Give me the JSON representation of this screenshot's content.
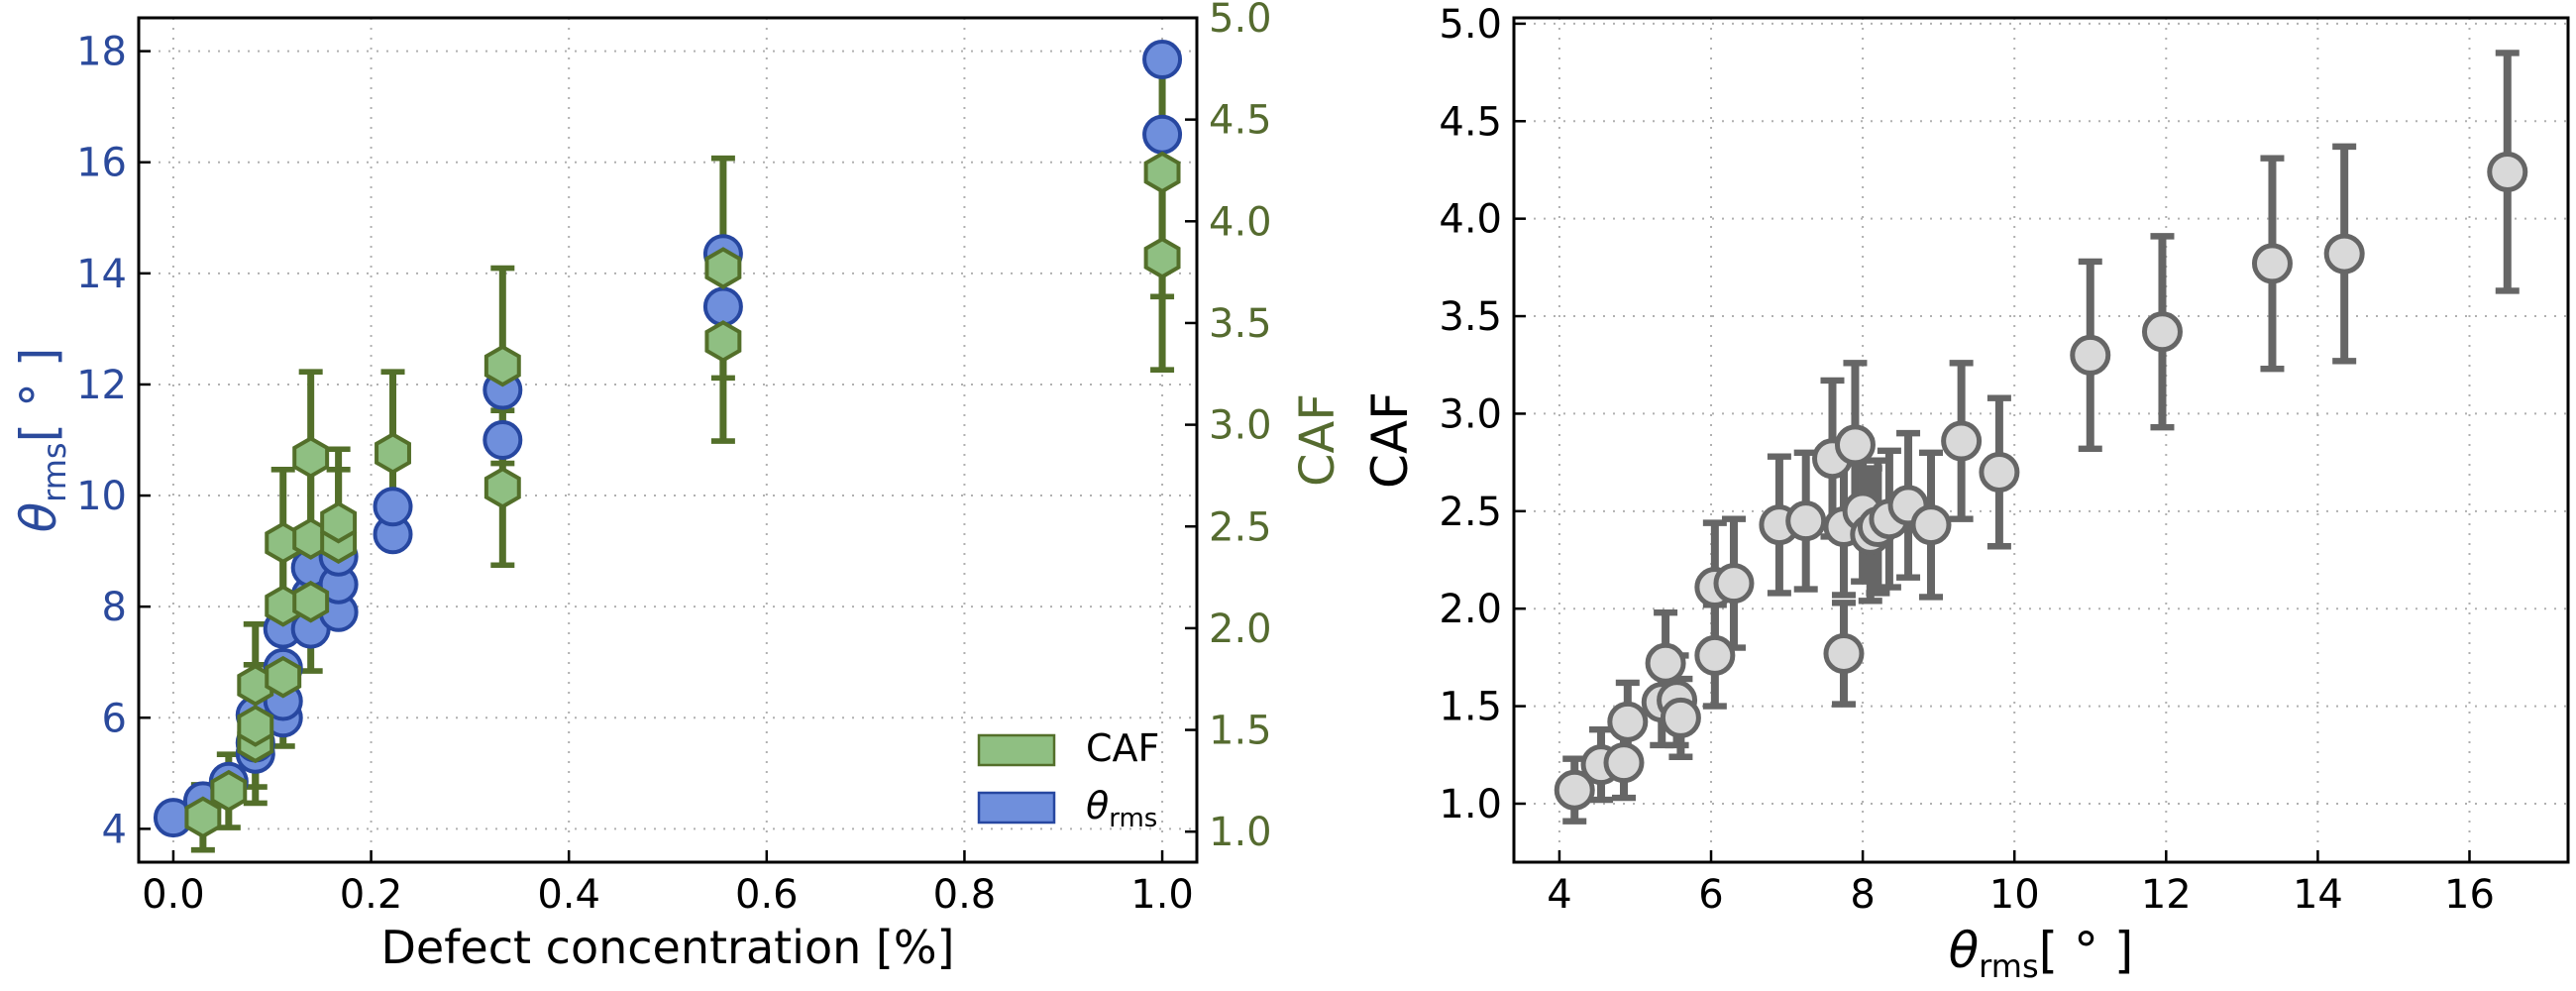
{
  "chart_data": [
    {
      "type": "scatter",
      "xlabel": "Defect concentration [%]",
      "ylabel_left": {
        "base": "θ",
        "sub": "rms",
        "suffix": "[ ° ]"
      },
      "ylabel_right": "CAF",
      "xlim": [
        -0.035,
        1.035
      ],
      "xticks": [
        0.0,
        0.2,
        0.4,
        0.6,
        0.8,
        1.0
      ],
      "xtick_labels": [
        "0.0",
        "0.2",
        "0.4",
        "0.6",
        "0.8",
        "1.0"
      ],
      "ylim_left": [
        3.4,
        18.6
      ],
      "yticks_left": [
        4,
        6,
        8,
        10,
        12,
        14,
        16,
        18
      ],
      "ytick_labels_left": [
        "4",
        "6",
        "8",
        "10",
        "12",
        "14",
        "16",
        "18"
      ],
      "ylim_right": [
        0.85,
        5.0
      ],
      "yticks_right": [
        1.0,
        1.5,
        2.0,
        2.5,
        3.0,
        3.5,
        4.0,
        4.5,
        5.0
      ],
      "ytick_labels_right": [
        "1.0",
        "1.5",
        "2.0",
        "2.5",
        "3.0",
        "3.5",
        "4.0",
        "4.5",
        "5.0"
      ],
      "grid": true,
      "legend_position": "bottom-right",
      "colors": {
        "theta": "#6f8fdc",
        "theta_edge": "#2747a0",
        "caf": "#8fbf82",
        "caf_edge": "#536f2a",
        "left_axis": "#2b4a9c",
        "right_axis": "#556b2f"
      },
      "series": [
        {
          "name": "θrms",
          "axis": "left",
          "marker": "circle",
          "points": [
            {
              "x": 0.0,
              "y": 4.2
            },
            {
              "x": 0.03,
              "y": 4.5
            },
            {
              "x": 0.056,
              "y": 4.85
            },
            {
              "x": 0.083,
              "y": 5.35
            },
            {
              "x": 0.083,
              "y": 5.55
            },
            {
              "x": 0.083,
              "y": 6.05
            },
            {
              "x": 0.111,
              "y": 6.0
            },
            {
              "x": 0.111,
              "y": 6.3
            },
            {
              "x": 0.111,
              "y": 6.9
            },
            {
              "x": 0.111,
              "y": 7.6
            },
            {
              "x": 0.139,
              "y": 7.6
            },
            {
              "x": 0.139,
              "y": 8.2
            },
            {
              "x": 0.139,
              "y": 8.7
            },
            {
              "x": 0.167,
              "y": 7.9
            },
            {
              "x": 0.167,
              "y": 8.4
            },
            {
              "x": 0.167,
              "y": 8.9
            },
            {
              "x": 0.222,
              "y": 9.3
            },
            {
              "x": 0.222,
              "y": 9.8
            },
            {
              "x": 0.333,
              "y": 11.0
            },
            {
              "x": 0.333,
              "y": 11.9
            },
            {
              "x": 0.556,
              "y": 13.4
            },
            {
              "x": 0.556,
              "y": 14.35
            },
            {
              "x": 1.0,
              "y": 16.5
            },
            {
              "x": 1.0,
              "y": 17.85
            }
          ]
        },
        {
          "name": "CAF",
          "axis": "right",
          "marker": "hexagon",
          "points": [
            {
              "x": 0.03,
              "y": 1.07,
              "err": 0.16
            },
            {
              "x": 0.056,
              "y": 1.2,
              "err": 0.18
            },
            {
              "x": 0.083,
              "y": 1.44,
              "err": 0.3
            },
            {
              "x": 0.083,
              "y": 1.52,
              "err": 0.3
            },
            {
              "x": 0.083,
              "y": 1.72,
              "err": 0.3
            },
            {
              "x": 0.111,
              "y": 1.76,
              "err": 0.34
            },
            {
              "x": 0.111,
              "y": 2.11,
              "err": 0.36
            },
            {
              "x": 0.111,
              "y": 2.42,
              "err": 0.36
            },
            {
              "x": 0.139,
              "y": 2.44,
              "err": 0.36
            },
            {
              "x": 0.139,
              "y": 2.13,
              "err": 0.34
            },
            {
              "x": 0.139,
              "y": 2.84,
              "err": 0.42
            },
            {
              "x": 0.167,
              "y": 2.42,
              "err": 0.36
            },
            {
              "x": 0.167,
              "y": 2.52,
              "err": 0.36
            },
            {
              "x": 0.222,
              "y": 2.86,
              "err": 0.4
            },
            {
              "x": 0.333,
              "y": 2.69,
              "err": 0.38
            },
            {
              "x": 0.333,
              "y": 3.29,
              "err": 0.48
            },
            {
              "x": 0.556,
              "y": 3.41,
              "err": 0.49
            },
            {
              "x": 0.556,
              "y": 3.77,
              "err": 0.54
            },
            {
              "x": 1.0,
              "y": 3.82,
              "err": 0.55
            },
            {
              "x": 1.0,
              "y": 4.24,
              "err": 0.61
            }
          ]
        }
      ],
      "legend": [
        {
          "label_plain": "CAF",
          "series": "CAF"
        },
        {
          "label_base": "θ",
          "label_sub": "rms",
          "series": "θrms"
        }
      ]
    },
    {
      "type": "scatter",
      "xlabel": {
        "base": "θ",
        "sub": "rms",
        "suffix": "[ ° ]"
      },
      "ylabel": "CAF",
      "xlim": [
        3.4,
        17.3
      ],
      "xticks": [
        4,
        6,
        8,
        10,
        12,
        14,
        16
      ],
      "xtick_labels": [
        "4",
        "6",
        "8",
        "10",
        "12",
        "14",
        "16"
      ],
      "ylim": [
        0.7,
        5.03
      ],
      "yticks": [
        1.0,
        1.5,
        2.0,
        2.5,
        3.0,
        3.5,
        4.0,
        4.5,
        5.0
      ],
      "ytick_labels": [
        "1.0",
        "1.5",
        "2.0",
        "2.5",
        "3.0",
        "3.5",
        "4.0",
        "4.5",
        "5.0"
      ],
      "grid": true,
      "colors": {
        "marker": "#d9d9d9",
        "edge": "#666666"
      },
      "series": [
        {
          "name": "CAF vs θrms",
          "marker": "circle",
          "points": [
            {
              "x": 4.2,
              "y": 1.07,
              "err": 0.16
            },
            {
              "x": 4.55,
              "y": 1.2,
              "err": 0.18
            },
            {
              "x": 4.85,
              "y": 1.21,
              "err": 0.18
            },
            {
              "x": 4.9,
              "y": 1.42,
              "err": 0.2
            },
            {
              "x": 5.35,
              "y": 1.52,
              "err": 0.22
            },
            {
              "x": 5.4,
              "y": 1.72,
              "err": 0.26
            },
            {
              "x": 5.55,
              "y": 1.53,
              "err": 0.23
            },
            {
              "x": 5.6,
              "y": 1.44,
              "err": 0.2
            },
            {
              "x": 6.05,
              "y": 1.76,
              "err": 0.26
            },
            {
              "x": 6.05,
              "y": 2.11,
              "err": 0.33
            },
            {
              "x": 6.3,
              "y": 2.13,
              "err": 0.33
            },
            {
              "x": 6.9,
              "y": 2.43,
              "err": 0.35
            },
            {
              "x": 7.25,
              "y": 2.45,
              "err": 0.35
            },
            {
              "x": 7.6,
              "y": 2.77,
              "err": 0.4
            },
            {
              "x": 7.75,
              "y": 1.77,
              "err": 0.26
            },
            {
              "x": 7.75,
              "y": 2.42,
              "err": 0.35
            },
            {
              "x": 7.9,
              "y": 2.84,
              "err": 0.42
            },
            {
              "x": 8.0,
              "y": 2.5,
              "err": 0.36
            },
            {
              "x": 8.1,
              "y": 2.38,
              "err": 0.34
            },
            {
              "x": 8.2,
              "y": 2.42,
              "err": 0.34
            },
            {
              "x": 8.35,
              "y": 2.46,
              "err": 0.35
            },
            {
              "x": 8.6,
              "y": 2.53,
              "err": 0.37
            },
            {
              "x": 8.9,
              "y": 2.43,
              "err": 0.37
            },
            {
              "x": 9.3,
              "y": 2.86,
              "err": 0.4
            },
            {
              "x": 9.8,
              "y": 2.7,
              "err": 0.38
            },
            {
              "x": 11.0,
              "y": 3.3,
              "err": 0.48
            },
            {
              "x": 11.95,
              "y": 3.42,
              "err": 0.49
            },
            {
              "x": 13.4,
              "y": 3.77,
              "err": 0.54
            },
            {
              "x": 14.35,
              "y": 3.82,
              "err": 0.55
            },
            {
              "x": 16.5,
              "y": 4.24,
              "err": 0.61
            }
          ]
        }
      ]
    }
  ]
}
